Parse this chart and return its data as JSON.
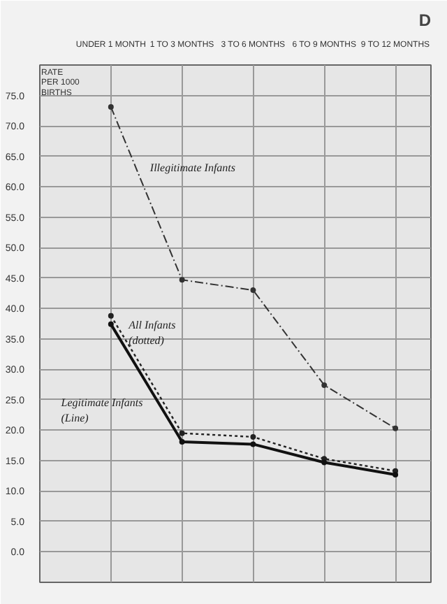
{
  "chart_data": {
    "type": "line",
    "title": "D",
    "ylabel": "RATE PER 1000 BIRTHS",
    "categories": [
      "UNDER 1 MONTH",
      "1 TO 3 MONTHS",
      "3 TO 6 MONTHS",
      "6 TO 9 MONTHS",
      "9 TO 12 MONTHS"
    ],
    "series": [
      {
        "name": "Illegitimate Infants",
        "color": "#333333",
        "line_style": "dashed",
        "values": [
          73.1,
          44.7,
          43.0,
          27.4,
          20.3
        ]
      },
      {
        "name": "All Infants (dotted)",
        "color": "#222222",
        "line_style": "dotted",
        "values": [
          38.8,
          19.5,
          18.9,
          15.3,
          13.3
        ]
      },
      {
        "name": "Legitimate Infants (Line)",
        "color": "#111111",
        "line_style": "solid",
        "values": [
          37.4,
          18.1,
          17.7,
          14.7,
          12.7
        ]
      }
    ],
    "ylim": [
      -5,
      80
    ],
    "yticks": [
      {
        "value": 0,
        "label": "0.0"
      },
      {
        "value": 5,
        "label": "5.0"
      },
      {
        "value": 10,
        "label": "10.0"
      },
      {
        "value": 15,
        "label": "15.0"
      },
      {
        "value": 20,
        "label": "20.0"
      },
      {
        "value": 25,
        "label": "25.0"
      },
      {
        "value": 30,
        "label": "30.0"
      },
      {
        "value": 35,
        "label": "35.0"
      },
      {
        "value": 40,
        "label": "40.0"
      },
      {
        "value": 45,
        "label": "45.0"
      },
      {
        "value": 50,
        "label": "50.0"
      },
      {
        "value": 55,
        "label": "55.0"
      },
      {
        "value": 60,
        "label": "60.0"
      },
      {
        "value": 65,
        "label": "65.0"
      },
      {
        "value": 70,
        "label": "70.0"
      },
      {
        "value": 75,
        "label": "75.0"
      }
    ],
    "grid": true,
    "marker": "circle"
  }
}
